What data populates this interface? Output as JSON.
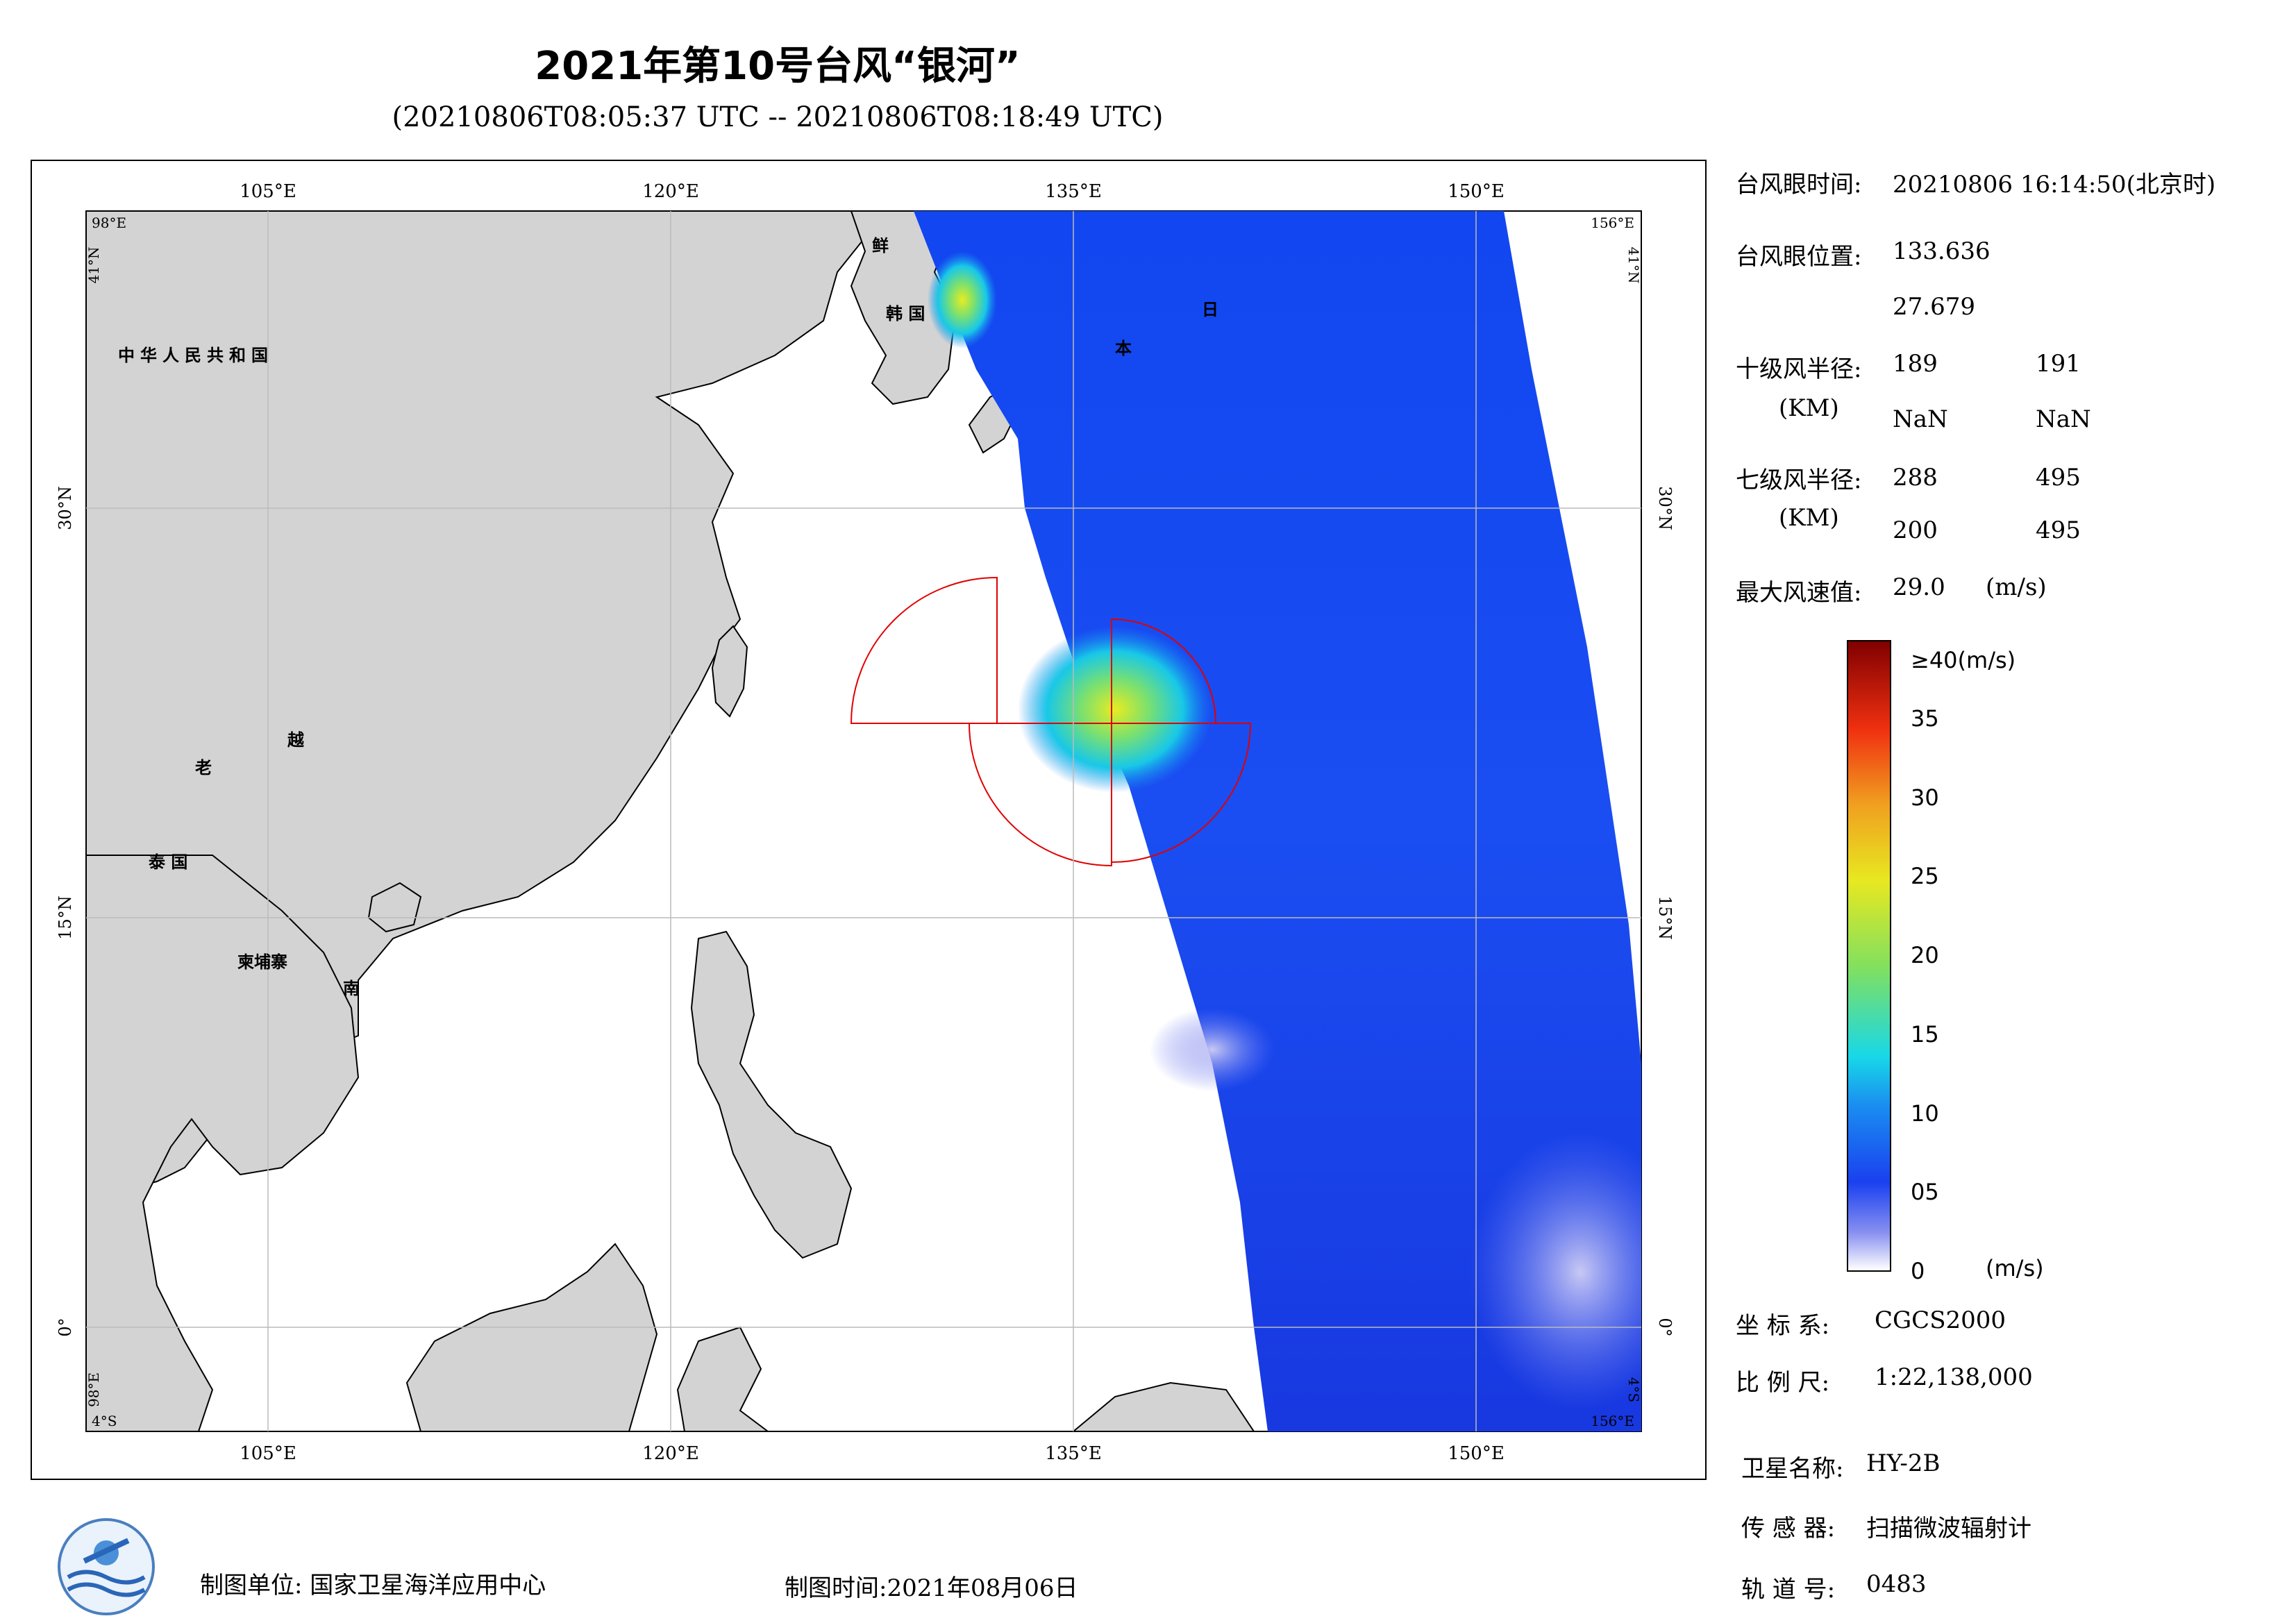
{
  "header": {
    "title": "2021年第10号台风“银河”",
    "subtitle": "(20210806T08:05:37 UTC -- 20210806T08:18:49 UTC)"
  },
  "map": {
    "lon_ticks": [
      "105°E",
      "120°E",
      "135°E",
      "150°E"
    ],
    "lat_ticks": [
      "30°N",
      "15°N",
      "0°"
    ],
    "corners": {
      "nw_lon": "98°E",
      "nw_lat": "41°N",
      "ne_lon": "156°E",
      "ne_lat": "41°N",
      "sw_lon": "98°E",
      "sw_lat": "4°S",
      "se_lon": "156°E",
      "se_lat": "4°S"
    },
    "country_labels": {
      "china": "中华人民共和国",
      "korea_n": "鲜",
      "korea_s": "韩 国",
      "japan_1": "日",
      "japan_2": "本",
      "laos": "老",
      "vietnam_1": "越",
      "vietnam_2": "南",
      "thailand": "泰 国",
      "cambodia": "柬埔寨"
    },
    "land_color": "#d3d3d3",
    "sea_color": "#ffffff",
    "typhoon_eye": {
      "lon": 133.636,
      "lat": 27.679
    }
  },
  "info": {
    "eye_time_label": "台风眼时间:",
    "eye_time_value": "20210806 16:14:50(北京时)",
    "eye_pos_label": "台风眼位置:",
    "eye_lon": "133.636",
    "eye_lat": "27.679",
    "r10_label": "十级风半径:",
    "r10_unit": "(KM)",
    "r10_values": [
      "189",
      "191",
      "NaN",
      "NaN"
    ],
    "r7_label": "七级风半径:",
    "r7_unit": "(KM)",
    "r7_values": [
      "288",
      "495",
      "200",
      "495"
    ],
    "max_wind_label": "最大风速值:",
    "max_wind_value": "29.0",
    "max_wind_unit": "(m/s)",
    "coord_label": "坐 标 系:",
    "coord_value": "CGCS2000",
    "scale_label": "比 例 尺:",
    "scale_value": "1:22,138,000",
    "satellite_label": "卫星名称:",
    "satellite_value": "HY-2B",
    "sensor_label": "传 感 器:",
    "sensor_value": "扫描微波辐射计",
    "orbit_label": "轨 道 号:",
    "orbit_value": "0483"
  },
  "legend": {
    "top_label": "≥40(m/s)",
    "ticks": [
      "35",
      "30",
      "25",
      "20",
      "15",
      "10",
      "05",
      "0"
    ],
    "unit": "(m/s)",
    "min": 0,
    "max": 40
  },
  "footer": {
    "unit_label": "制图单位: 国家卫星海洋应用中心",
    "time_label": "制图时间:2021年08月06日"
  }
}
